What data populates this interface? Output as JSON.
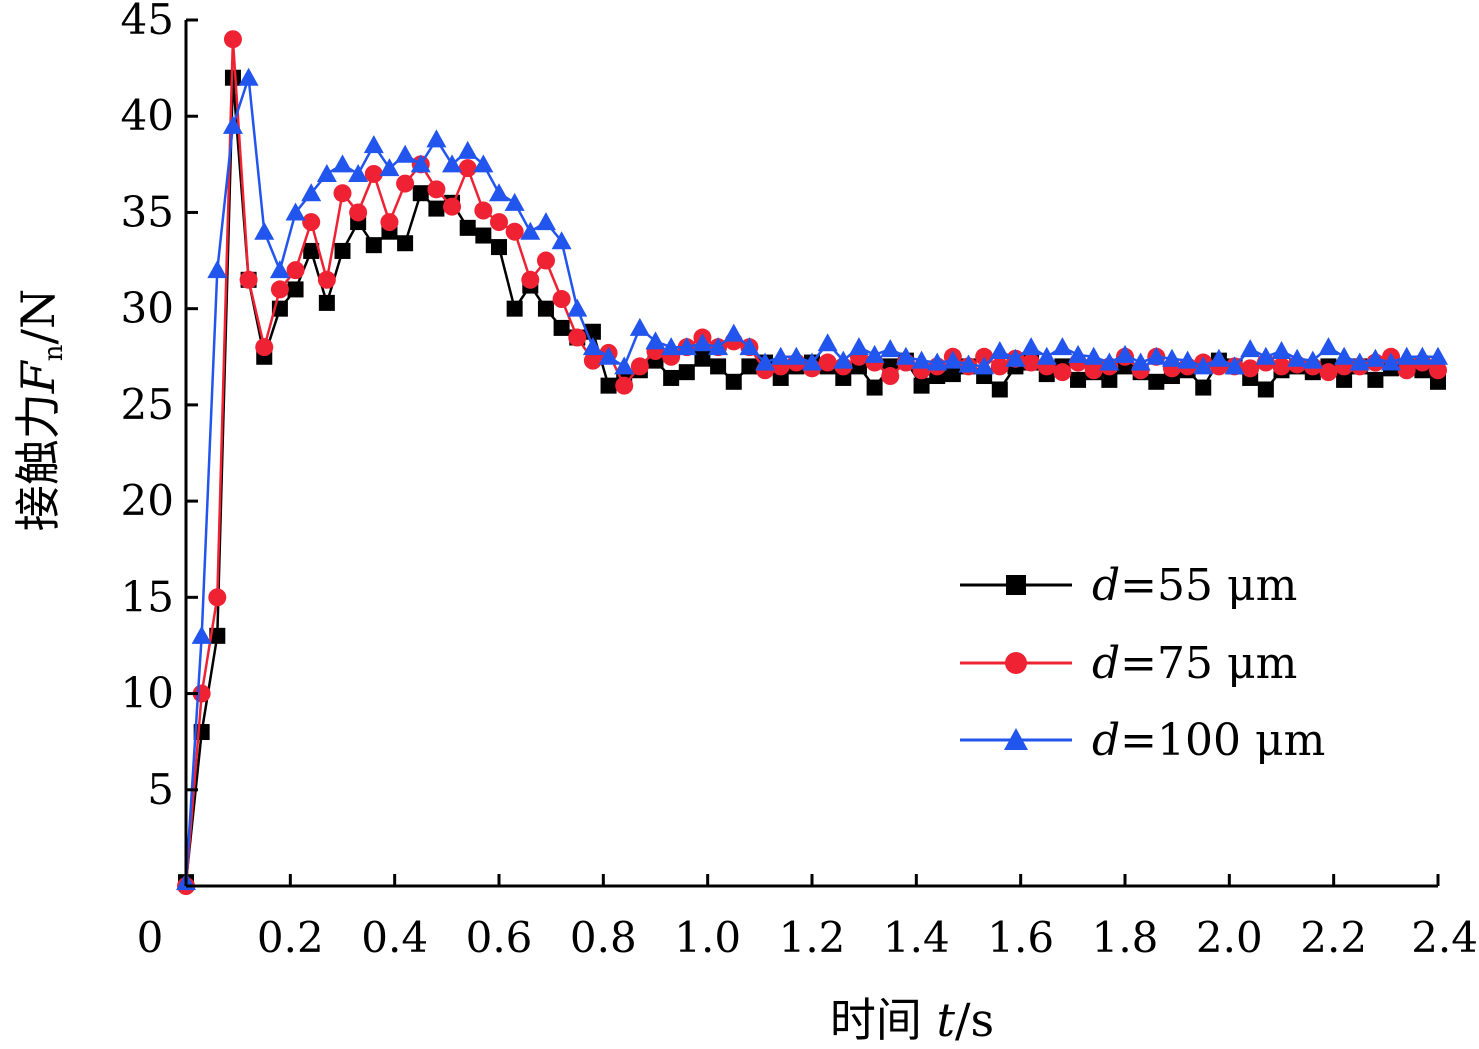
{
  "chart_data": {
    "type": "line",
    "xlabel_prefix": "时间 ",
    "xlabel_var": "t",
    "xlabel_unit": "/s",
    "ylabel_prefix": "接触力",
    "ylabel_var": "F",
    "ylabel_sub": "n",
    "ylabel_unit": "/N",
    "xlim": [
      0,
      2.4
    ],
    "ylim": [
      0,
      45
    ],
    "x_origin_label": "0",
    "x_ticks": [
      0.2,
      0.4,
      0.6,
      0.8,
      1.0,
      1.2,
      1.4,
      1.6,
      1.8,
      2.0,
      2.2,
      2.4
    ],
    "x_tick_labels": [
      "0.2",
      "0.4",
      "0.6",
      "0.8",
      "1.0",
      "1.2",
      "1.4",
      "1.6",
      "1.8",
      "2.0",
      "2.2",
      "2.4"
    ],
    "y_ticks": [
      5,
      10,
      15,
      20,
      25,
      30,
      35,
      40,
      45
    ],
    "y_tick_labels": [
      "5",
      "10",
      "15",
      "20",
      "25",
      "30",
      "35",
      "40",
      "45"
    ],
    "grid": false,
    "legend_position": "center-right",
    "series": [
      {
        "name": "d=55 μm",
        "legend_var": "d",
        "legend_rest": "=55 μm",
        "color": "#000000",
        "marker": "square",
        "x": [
          0.0,
          0.03,
          0.06,
          0.09,
          0.12,
          0.15,
          0.18,
          0.21,
          0.24,
          0.27,
          0.3,
          0.33,
          0.36,
          0.39,
          0.42,
          0.45,
          0.48,
          0.51,
          0.54,
          0.57,
          0.6,
          0.63,
          0.66,
          0.69,
          0.72,
          0.75,
          0.78,
          0.81,
          0.84,
          0.87,
          0.9,
          0.93,
          0.96,
          0.99,
          1.02,
          1.05,
          1.08,
          1.11,
          1.14,
          1.17,
          1.2,
          1.23,
          1.26,
          1.29,
          1.32,
          1.35,
          1.38,
          1.41,
          1.44,
          1.47,
          1.5,
          1.53,
          1.56,
          1.59,
          1.62,
          1.65,
          1.68,
          1.71,
          1.74,
          1.77,
          1.8,
          1.83,
          1.86,
          1.89,
          1.92,
          1.95,
          1.98,
          2.01,
          2.04,
          2.07,
          2.1,
          2.13,
          2.16,
          2.19,
          2.22,
          2.25,
          2.28,
          2.31,
          2.34,
          2.37,
          2.4
        ],
        "y": [
          0.2,
          8.0,
          13.0,
          42.0,
          31.5,
          27.5,
          30.0,
          31.0,
          33.0,
          30.3,
          33.0,
          34.5,
          33.3,
          34.0,
          33.4,
          36.0,
          35.2,
          35.5,
          34.2,
          33.8,
          33.2,
          30.0,
          31.2,
          30.0,
          29.0,
          28.5,
          28.8,
          26.0,
          26.2,
          26.8,
          27.3,
          26.4,
          26.7,
          27.4,
          27.0,
          26.2,
          27.0,
          27.2,
          26.4,
          27.0,
          27.2,
          27.0,
          26.4,
          27.0,
          25.9,
          27.0,
          27.3,
          26.0,
          26.5,
          26.6,
          27.0,
          26.5,
          25.8,
          27.0,
          27.2,
          26.6,
          27.0,
          26.3,
          26.7,
          26.3,
          27.0,
          26.7,
          26.2,
          26.5,
          26.8,
          25.9,
          27.3,
          27.0,
          26.4,
          25.8,
          26.8,
          27.0,
          26.7,
          27.0,
          26.3,
          27.0,
          26.3,
          26.9,
          27.0,
          26.8,
          26.2
        ]
      },
      {
        "name": "d=75 μm",
        "legend_var": "d",
        "legend_rest": "=75 μm",
        "color": "#ee2233",
        "marker": "circle",
        "x": [
          0.0,
          0.03,
          0.06,
          0.09,
          0.12,
          0.15,
          0.18,
          0.21,
          0.24,
          0.27,
          0.3,
          0.33,
          0.36,
          0.39,
          0.42,
          0.45,
          0.48,
          0.51,
          0.54,
          0.57,
          0.6,
          0.63,
          0.66,
          0.69,
          0.72,
          0.75,
          0.78,
          0.81,
          0.84,
          0.87,
          0.9,
          0.93,
          0.96,
          0.99,
          1.02,
          1.05,
          1.08,
          1.11,
          1.14,
          1.17,
          1.2,
          1.23,
          1.26,
          1.29,
          1.32,
          1.35,
          1.38,
          1.41,
          1.44,
          1.47,
          1.5,
          1.53,
          1.56,
          1.59,
          1.62,
          1.65,
          1.68,
          1.71,
          1.74,
          1.77,
          1.8,
          1.83,
          1.86,
          1.89,
          1.92,
          1.95,
          1.98,
          2.01,
          2.04,
          2.07,
          2.1,
          2.13,
          2.16,
          2.19,
          2.22,
          2.25,
          2.28,
          2.31,
          2.34,
          2.37,
          2.4
        ],
        "y": [
          0.0,
          10.0,
          15.0,
          44.0,
          31.5,
          28.0,
          31.0,
          32.0,
          34.5,
          31.5,
          36.0,
          35.0,
          37.0,
          34.5,
          36.5,
          37.5,
          36.2,
          35.3,
          37.3,
          35.1,
          34.5,
          34.0,
          31.5,
          32.5,
          30.5,
          28.5,
          27.3,
          27.7,
          26.0,
          27.0,
          27.8,
          27.5,
          28.0,
          28.5,
          28.0,
          28.3,
          28.0,
          26.8,
          27.0,
          27.2,
          26.9,
          27.2,
          27.0,
          27.5,
          27.2,
          26.5,
          27.2,
          26.8,
          27.0,
          27.5,
          27.0,
          27.5,
          27.0,
          27.4,
          27.2,
          27.0,
          26.7,
          27.2,
          26.8,
          27.0,
          27.5,
          26.8,
          27.5,
          26.9,
          27.0,
          27.2,
          27.0,
          27.0,
          26.9,
          27.2,
          27.0,
          27.1,
          27.0,
          26.7,
          27.0,
          27.0,
          27.2,
          27.5,
          26.8,
          27.2,
          26.8
        ]
      },
      {
        "name": "d=100 μm",
        "legend_var": "d",
        "legend_rest": "=100 μm",
        "color": "#2255ee",
        "marker": "triangle",
        "x": [
          0.0,
          0.03,
          0.06,
          0.09,
          0.12,
          0.15,
          0.18,
          0.21,
          0.24,
          0.27,
          0.3,
          0.33,
          0.36,
          0.39,
          0.42,
          0.45,
          0.48,
          0.51,
          0.54,
          0.57,
          0.6,
          0.63,
          0.66,
          0.69,
          0.72,
          0.75,
          0.78,
          0.81,
          0.84,
          0.87,
          0.9,
          0.93,
          0.96,
          0.99,
          1.02,
          1.05,
          1.08,
          1.11,
          1.14,
          1.17,
          1.2,
          1.23,
          1.26,
          1.29,
          1.32,
          1.35,
          1.38,
          1.41,
          1.44,
          1.47,
          1.5,
          1.53,
          1.56,
          1.59,
          1.62,
          1.65,
          1.68,
          1.71,
          1.74,
          1.77,
          1.8,
          1.83,
          1.86,
          1.89,
          1.92,
          1.95,
          1.98,
          2.01,
          2.04,
          2.07,
          2.1,
          2.13,
          2.16,
          2.19,
          2.22,
          2.25,
          2.28,
          2.31,
          2.34,
          2.37,
          2.4
        ],
        "y": [
          0.2,
          13.0,
          32.0,
          39.5,
          42.0,
          34.0,
          32.0,
          35.0,
          36.0,
          37.0,
          37.5,
          37.0,
          38.5,
          37.3,
          38.0,
          37.5,
          38.8,
          37.5,
          38.2,
          37.5,
          36.0,
          35.5,
          34.0,
          34.5,
          33.5,
          30.0,
          28.0,
          27.5,
          27.0,
          29.0,
          28.3,
          28.0,
          28.0,
          28.2,
          28.0,
          28.7,
          28.0,
          27.2,
          27.5,
          27.5,
          27.2,
          28.2,
          27.3,
          28.0,
          27.6,
          27.9,
          27.5,
          27.3,
          27.2,
          27.3,
          27.1,
          27.0,
          27.8,
          27.4,
          28.0,
          27.5,
          28.0,
          27.6,
          27.5,
          27.2,
          27.6,
          27.2,
          27.5,
          27.4,
          27.3,
          27.0,
          27.4,
          27.0,
          27.9,
          27.5,
          27.8,
          27.4,
          27.3,
          28.0,
          27.5,
          27.2,
          27.4,
          27.2,
          27.5,
          27.5,
          27.5
        ]
      }
    ]
  }
}
